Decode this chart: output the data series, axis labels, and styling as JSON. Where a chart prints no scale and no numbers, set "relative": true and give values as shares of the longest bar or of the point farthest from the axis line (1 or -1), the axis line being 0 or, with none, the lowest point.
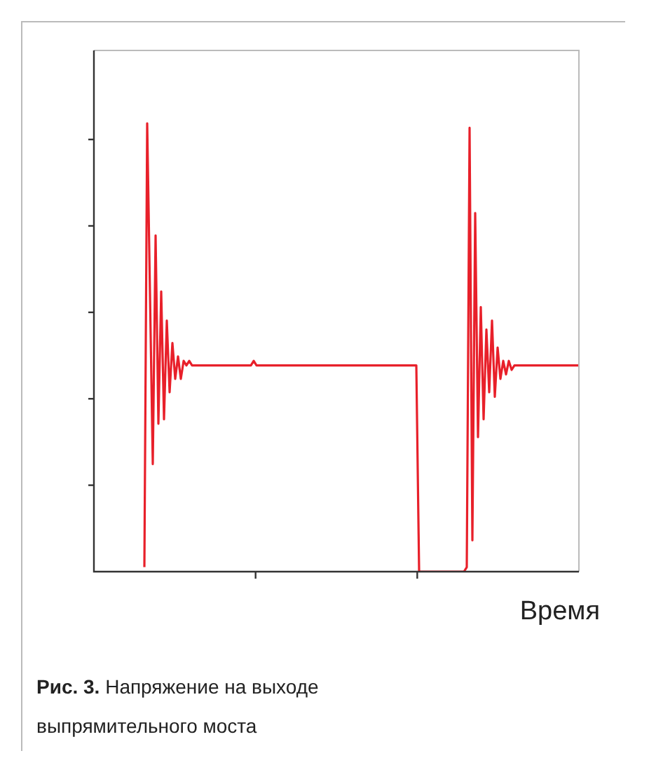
{
  "chart_data": {
    "type": "line",
    "relative": true,
    "xlabel": "Время",
    "annotations": [
      "Рис. 3.",
      "Напряжение на выходе выпрямительного моста"
    ],
    "categories": [
      null,
      null,
      null,
      null,
      null,
      null,
      null,
      null,
      null,
      null,
      null,
      null,
      null,
      null,
      null,
      null,
      null,
      null,
      null,
      null,
      null,
      null,
      null,
      null,
      null,
      null,
      null,
      null,
      null,
      null,
      null,
      null,
      null,
      null,
      null,
      null,
      null,
      null,
      null,
      null,
      null,
      null,
      null,
      null,
      null,
      null,
      null,
      null,
      null,
      null,
      null,
      null,
      null,
      null,
      null,
      null,
      null,
      null,
      null,
      null,
      null,
      null,
      null,
      null,
      null,
      null,
      null,
      null,
      null,
      null,
      null,
      null,
      null,
      null,
      null,
      null,
      null,
      null,
      null,
      null,
      null,
      null,
      null,
      null,
      null,
      null,
      null,
      null,
      null,
      null,
      null,
      null,
      null,
      null,
      null,
      null,
      null,
      null,
      null,
      null,
      null,
      null,
      null,
      null,
      null,
      null,
      null,
      null,
      null,
      null,
      null,
      null,
      null,
      null,
      null,
      null,
      null,
      null,
      null,
      null,
      null,
      null,
      null,
      null,
      null,
      null,
      null,
      null,
      null,
      null,
      null,
      null,
      null,
      null,
      null,
      null,
      null,
      null,
      null,
      null,
      null,
      null,
      null,
      null,
      null,
      null,
      null,
      null,
      null,
      null,
      null,
      null,
      null,
      null,
      null,
      null,
      null,
      null,
      null,
      null,
      null,
      null,
      null,
      null,
      null,
      null,
      null,
      null,
      null,
      null,
      null,
      null,
      null,
      null
    ],
    "series": [
      {
        "color": "#e8202a",
        "values": [
          null,
          null,
          null,
          null,
          null,
          null,
          null,
          null,
          null,
          null,
          null,
          null,
          null,
          null,
          null,
          null,
          null,
          null,
          0.01,
          1,
          0.62,
          0.24,
          0.75,
          0.33,
          0.625,
          0.34,
          0.56,
          0.4,
          0.51,
          0.43,
          0.48,
          0.43,
          0.47,
          0.46,
          0.47,
          0.46,
          0.46,
          0.46,
          0.46,
          0.46,
          0.46,
          0.46,
          0.46,
          0.46,
          0.46,
          0.46,
          0.46,
          0.46,
          0.46,
          0.46,
          0.46,
          0.46,
          0.46,
          0.46,
          0.46,
          0.46,
          0.46,
          0.47,
          0.46,
          0.46,
          0.46,
          0.46,
          0.46,
          0.46,
          0.46,
          0.46,
          0.46,
          0.46,
          0.46,
          0.46,
          0.46,
          0.46,
          0.46,
          0.46,
          0.46,
          0.46,
          0.46,
          0.46,
          0.46,
          0.46,
          0.46,
          0.46,
          0.46,
          0.46,
          0.46,
          0.46,
          0.46,
          0.46,
          0.46,
          0.46,
          0.46,
          0.46,
          0.46,
          0.46,
          0.46,
          0.46,
          0.46,
          0.46,
          0.46,
          0.46,
          0.46,
          0.46,
          0.46,
          0.46,
          0.46,
          0.46,
          0.46,
          0.46,
          0.46,
          0.46,
          0.46,
          0.46,
          0.46,
          0.46,
          0.46,
          0.46,
          0,
          0,
          0,
          0,
          0,
          0,
          0,
          0,
          0,
          0,
          0,
          0,
          0,
          0,
          0,
          0,
          0,
          0.01,
          0.99,
          0.07,
          0.8,
          0.3,
          0.59,
          0.34,
          0.54,
          0.4,
          0.56,
          0.39,
          0.5,
          0.43,
          0.47,
          0.44,
          0.47,
          0.45,
          0.46,
          0.46,
          0.46,
          0.46,
          0.46,
          0.46,
          0.46,
          0.46,
          0.46,
          0.46,
          0.46,
          0.46,
          0.46,
          0.46,
          0.46,
          0.46,
          0.46,
          0.46,
          0.46,
          0.46,
          0.46,
          0.46,
          0.46,
          0.46
        ]
      }
    ],
    "tick_labels": false,
    "legend": false,
    "grid": false,
    "marker": "none",
    "line_style": "solid"
  }
}
